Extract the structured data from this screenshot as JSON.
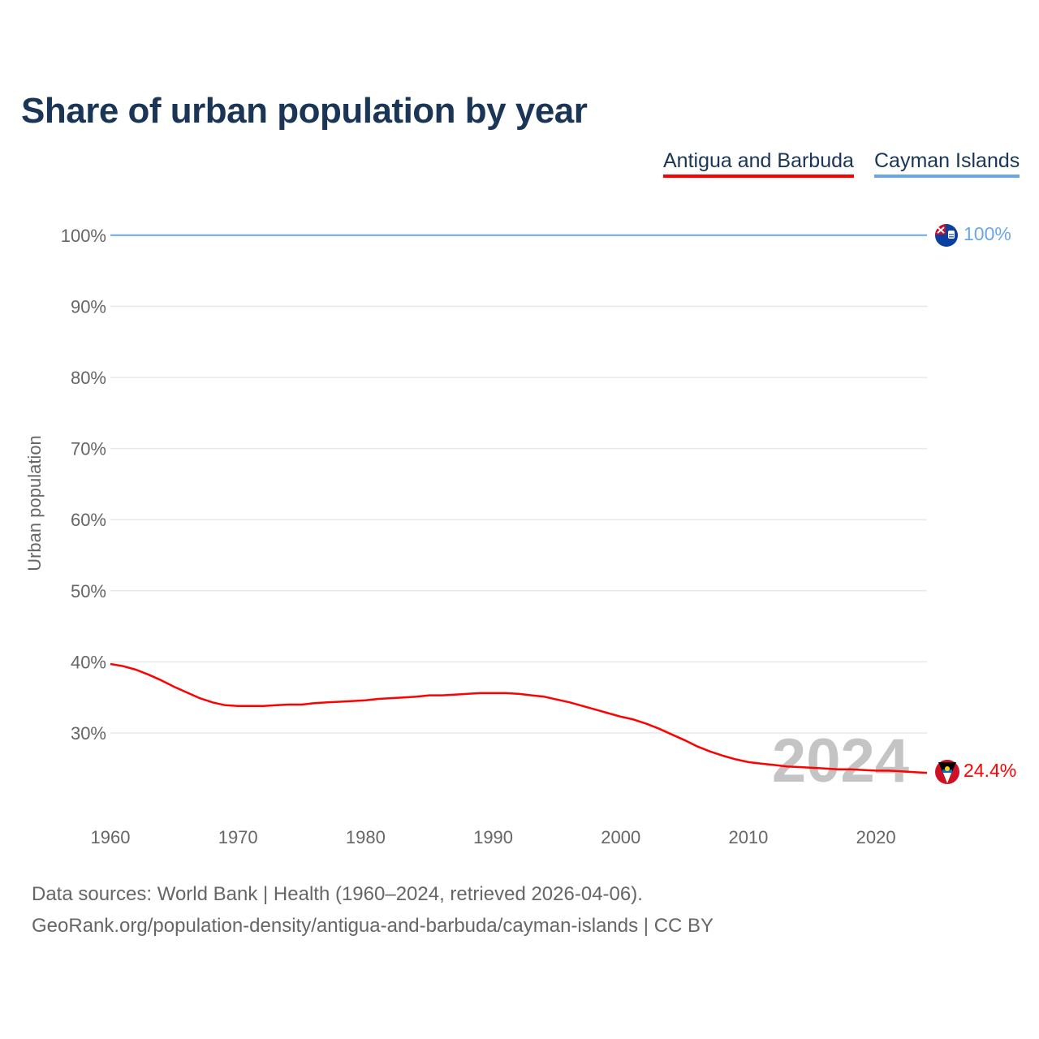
{
  "title": "Share of urban population by year",
  "legend": [
    {
      "label": "Antigua and Barbuda",
      "color": "#ff0000"
    },
    {
      "label": "Cayman Islands",
      "color": "#6aa6e8"
    }
  ],
  "footer": {
    "line1": "Data sources: World Bank | Health (1960–2024, retrieved 2026-04-06).",
    "line2": "GeoRank.org/population-density/antigua-and-barbuda/cayman-islands | CC BY"
  },
  "chart_data": {
    "type": "line",
    "title": "Share of urban population by year",
    "xlabel": "",
    "ylabel": "Urban population",
    "xlim": [
      1960,
      2024
    ],
    "ylim": [
      20,
      100
    ],
    "x_ticks": [
      "1960",
      "1970",
      "1980",
      "1990",
      "2000",
      "2010",
      "2020"
    ],
    "y_ticks": [
      "30%",
      "40%",
      "50%",
      "60%",
      "70%",
      "80%",
      "90%",
      "100%"
    ],
    "grid": true,
    "watermark_year": "2024",
    "x": [
      1960,
      1961,
      1962,
      1963,
      1964,
      1965,
      1966,
      1967,
      1968,
      1969,
      1970,
      1971,
      1972,
      1973,
      1974,
      1975,
      1976,
      1977,
      1978,
      1979,
      1980,
      1981,
      1982,
      1983,
      1984,
      1985,
      1986,
      1987,
      1988,
      1989,
      1990,
      1991,
      1992,
      1993,
      1994,
      1995,
      1996,
      1997,
      1998,
      1999,
      2000,
      2001,
      2002,
      2003,
      2004,
      2005,
      2006,
      2007,
      2008,
      2009,
      2010,
      2011,
      2012,
      2013,
      2014,
      2015,
      2016,
      2017,
      2018,
      2019,
      2020,
      2021,
      2022,
      2023,
      2024
    ],
    "series": [
      {
        "name": "Antigua and Barbuda",
        "color": "#ff0000",
        "end_label": "24.4%",
        "values": [
          39.7,
          39.4,
          38.9,
          38.2,
          37.4,
          36.5,
          35.7,
          34.9,
          34.3,
          33.9,
          33.8,
          33.8,
          33.8,
          33.9,
          34.0,
          34.0,
          34.2,
          34.3,
          34.4,
          34.5,
          34.6,
          34.8,
          34.9,
          35.0,
          35.1,
          35.3,
          35.3,
          35.4,
          35.5,
          35.6,
          35.6,
          35.6,
          35.5,
          35.3,
          35.1,
          34.7,
          34.3,
          33.8,
          33.3,
          32.8,
          32.3,
          31.9,
          31.3,
          30.6,
          29.8,
          29.0,
          28.1,
          27.4,
          26.8,
          26.3,
          25.9,
          25.7,
          25.5,
          25.3,
          25.2,
          25.1,
          25.0,
          24.9,
          24.9,
          24.8,
          24.7,
          24.7,
          24.6,
          24.5,
          24.4
        ]
      },
      {
        "name": "Cayman Islands",
        "color": "#6aa6e8",
        "end_label": "100%",
        "values": [
          100,
          100,
          100,
          100,
          100,
          100,
          100,
          100,
          100,
          100,
          100,
          100,
          100,
          100,
          100,
          100,
          100,
          100,
          100,
          100,
          100,
          100,
          100,
          100,
          100,
          100,
          100,
          100,
          100,
          100,
          100,
          100,
          100,
          100,
          100,
          100,
          100,
          100,
          100,
          100,
          100,
          100,
          100,
          100,
          100,
          100,
          100,
          100,
          100,
          100,
          100,
          100,
          100,
          100,
          100,
          100,
          100,
          100,
          100,
          100,
          100,
          100,
          100,
          100,
          100
        ]
      }
    ]
  }
}
